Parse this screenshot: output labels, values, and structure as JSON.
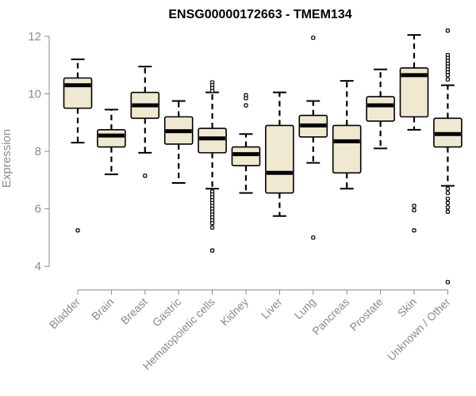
{
  "chart_data": {
    "type": "boxplot",
    "title": "ENSG00000172663 - TMEM134",
    "xlabel": "",
    "ylabel": "Expression",
    "ylim": [
      3.4,
      12.3
    ],
    "yticks": [
      4,
      6,
      8,
      10,
      12
    ],
    "box_fill": "#efe9d2",
    "categories": [
      "Bladder",
      "Brain",
      "Breast",
      "Gastric",
      "Hematopoietic cells",
      "Kidney",
      "Liver",
      "Lung",
      "Pancreas",
      "Prostate",
      "Skin",
      "Unknown / Other"
    ],
    "boxes": [
      {
        "name": "Bladder",
        "whisker_low": 8.3,
        "q1": 9.5,
        "median": 10.3,
        "q3": 10.55,
        "whisker_high": 11.2,
        "outliers": [
          5.25
        ]
      },
      {
        "name": "Brain",
        "whisker_low": 7.2,
        "q1": 8.15,
        "median": 8.55,
        "q3": 8.75,
        "whisker_high": 9.45,
        "outliers": []
      },
      {
        "name": "Breast",
        "whisker_low": 7.95,
        "q1": 9.15,
        "median": 9.6,
        "q3": 10.05,
        "whisker_high": 10.95,
        "outliers": [
          7.15
        ]
      },
      {
        "name": "Gastric",
        "whisker_low": 6.9,
        "q1": 8.25,
        "median": 8.7,
        "q3": 9.2,
        "whisker_high": 9.75,
        "outliers": []
      },
      {
        "name": "Hematopoietic cells",
        "whisker_low": 6.7,
        "q1": 7.95,
        "median": 8.45,
        "q3": 8.8,
        "whisker_high": 10.05,
        "outliers": [
          10.4,
          10.3,
          10.2,
          10.1,
          6.6,
          6.5,
          6.4,
          6.3,
          6.2,
          6.1,
          6.0,
          5.9,
          5.8,
          5.7,
          5.6,
          5.5,
          5.35,
          4.55
        ]
      },
      {
        "name": "Kidney",
        "whisker_low": 6.55,
        "q1": 7.5,
        "median": 7.9,
        "q3": 8.15,
        "whisker_high": 8.6,
        "outliers": [
          9.95,
          9.85,
          9.6
        ]
      },
      {
        "name": "Liver",
        "whisker_low": 5.75,
        "q1": 6.55,
        "median": 7.25,
        "q3": 8.9,
        "whisker_high": 10.05,
        "outliers": []
      },
      {
        "name": "Lung",
        "whisker_low": 7.6,
        "q1": 8.5,
        "median": 8.9,
        "q3": 9.25,
        "whisker_high": 9.75,
        "outliers": [
          11.95,
          5.0
        ]
      },
      {
        "name": "Pancreas",
        "whisker_low": 6.7,
        "q1": 7.25,
        "median": 8.35,
        "q3": 8.9,
        "whisker_high": 10.45,
        "outliers": []
      },
      {
        "name": "Prostate",
        "whisker_low": 8.1,
        "q1": 9.05,
        "median": 9.6,
        "q3": 9.9,
        "whisker_high": 10.85,
        "outliers": []
      },
      {
        "name": "Skin",
        "whisker_low": 8.75,
        "q1": 9.2,
        "median": 10.65,
        "q3": 10.9,
        "whisker_high": 12.05,
        "outliers": [
          6.1,
          5.95,
          5.25
        ]
      },
      {
        "name": "Unknown / Other",
        "whisker_low": 6.8,
        "q1": 8.15,
        "median": 8.6,
        "q3": 9.15,
        "whisker_high": 10.3,
        "outliers": [
          12.2,
          11.35,
          11.25,
          11.15,
          11.05,
          10.95,
          10.85,
          10.75,
          10.65,
          10.5,
          6.7,
          6.55,
          6.35,
          6.2,
          6.05,
          5.9,
          3.45
        ]
      }
    ]
  }
}
